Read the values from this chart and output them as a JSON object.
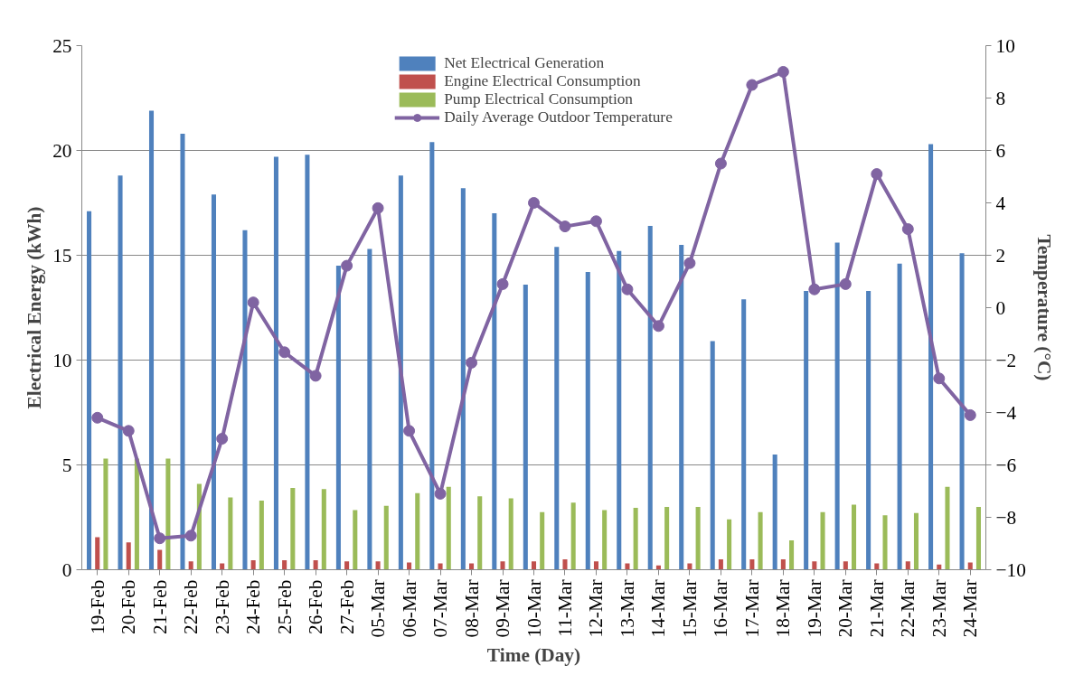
{
  "chart_data": {
    "type": "bar",
    "xlabel": "Time (Day)",
    "ylabel": "Electrical Energy (kWh)",
    "y2label": "Temperature (°C)",
    "categories": [
      "19-Feb",
      "20-Feb",
      "21-Feb",
      "22-Feb",
      "23-Feb",
      "24-Feb",
      "25-Feb",
      "26-Feb",
      "27-Feb",
      "05-Mar",
      "06-Mar",
      "07-Mar",
      "08-Mar",
      "09-Mar",
      "10-Mar",
      "11-Mar",
      "12-Mar",
      "13-Mar",
      "14-Mar",
      "15-Mar",
      "16-Mar",
      "17-Mar",
      "18-Mar",
      "19-Mar",
      "20-Mar",
      "21-Mar",
      "22-Mar",
      "23-Mar",
      "24-Mar"
    ],
    "series": [
      {
        "name": "Net Electrical Generation",
        "color": "#4f81bd",
        "values": [
          17.1,
          18.8,
          21.9,
          20.8,
          17.9,
          16.2,
          19.7,
          19.8,
          14.5,
          15.3,
          18.8,
          20.4,
          18.2,
          17.0,
          13.6,
          15.4,
          14.2,
          15.2,
          16.4,
          15.5,
          10.9,
          12.9,
          5.5,
          13.3,
          15.6,
          13.3,
          14.6,
          20.3,
          15.1
        ]
      },
      {
        "name": "Engine Electrical Consumption",
        "color": "#c0504d",
        "values": [
          1.55,
          1.3,
          0.95,
          0.4,
          0.3,
          0.45,
          0.45,
          0.45,
          0.4,
          0.4,
          0.35,
          0.3,
          0.3,
          0.4,
          0.4,
          0.5,
          0.4,
          0.3,
          0.2,
          0.3,
          0.5,
          0.5,
          0.5,
          0.4,
          0.4,
          0.3,
          0.4,
          0.25,
          0.35
        ]
      },
      {
        "name": "Pump Electrical Consumption",
        "color": "#9bbb59",
        "values": [
          5.3,
          5.3,
          5.3,
          4.1,
          3.45,
          3.3,
          3.9,
          3.85,
          2.85,
          3.05,
          3.65,
          3.95,
          3.5,
          3.4,
          2.75,
          3.2,
          2.85,
          2.95,
          3.0,
          3.0,
          2.4,
          2.75,
          1.4,
          2.75,
          3.1,
          2.6,
          2.7,
          3.95,
          3.0
        ]
      },
      {
        "name": "Daily Average Outdoor Temperature",
        "color": "#8064a2",
        "type": "line",
        "axis": "y2",
        "marker": "circle",
        "values": [
          -4.2,
          -4.7,
          -8.8,
          -8.7,
          -5.0,
          0.2,
          -1.7,
          -2.6,
          1.6,
          3.8,
          -4.7,
          -7.1,
          -2.1,
          0.9,
          4.0,
          3.1,
          3.3,
          0.7,
          -0.7,
          1.7,
          5.5,
          8.5,
          9.0,
          0.7,
          0.9,
          5.1,
          3.0,
          -2.7,
          -4.1
        ]
      }
    ],
    "ylim": [
      0,
      25
    ],
    "yticks": [
      0,
      5,
      10,
      15,
      20,
      25
    ],
    "y2lim": [
      -10,
      10
    ],
    "y2ticks": [
      -10,
      -8,
      -6,
      -4,
      -2,
      0,
      2,
      4,
      6,
      8,
      10
    ],
    "grid": "y",
    "legend": "top"
  }
}
